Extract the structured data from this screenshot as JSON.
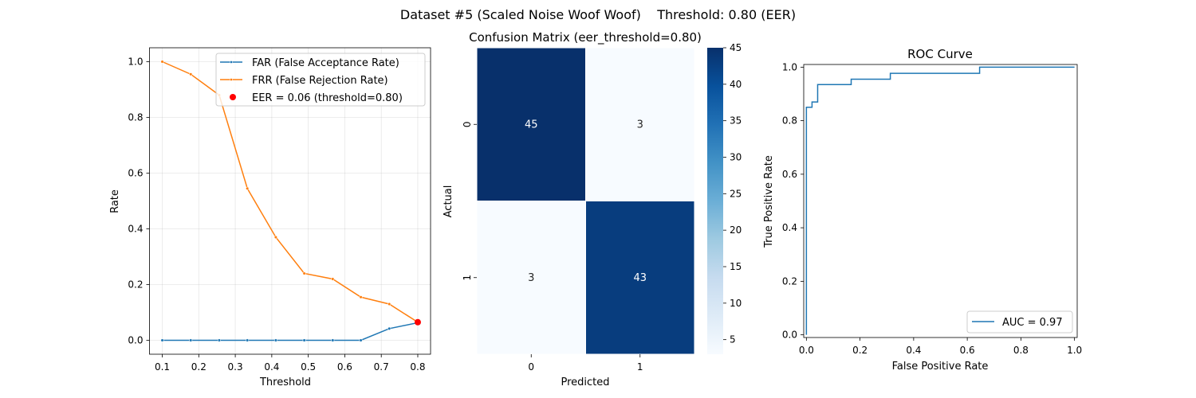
{
  "suptitle": "Dataset #5 (Scaled Noise Woof Woof)    Threshold: 0.80 (EER)",
  "colors": {
    "far": "#1f77b4",
    "frr": "#ff7f0e",
    "eer": "#ff0000",
    "roc": "#1f77b4"
  },
  "chart_data": [
    {
      "type": "line",
      "xlabel": "Threshold",
      "ylabel": "Rate",
      "xlim": [
        0.065,
        0.835
      ],
      "ylim": [
        -0.05,
        1.05
      ],
      "xticks": [
        0.1,
        0.2,
        0.3,
        0.4,
        0.5,
        0.6,
        0.7,
        0.8
      ],
      "yticks": [
        0.0,
        0.2,
        0.4,
        0.6,
        0.8,
        1.0
      ],
      "grid": true,
      "legend_position": "top-right",
      "x": [
        0.1,
        0.178,
        0.256,
        0.333,
        0.411,
        0.489,
        0.567,
        0.644,
        0.722,
        0.8
      ],
      "series": [
        {
          "name": "FAR (False Acceptance Rate)",
          "values": [
            0,
            0,
            0,
            0,
            0,
            0,
            0,
            0,
            0.042,
            0.063
          ]
        },
        {
          "name": "FRR (False Rejection Rate)",
          "values": [
            1.0,
            0.955,
            0.88,
            0.545,
            0.37,
            0.24,
            0.22,
            0.155,
            0.13,
            0.065
          ]
        }
      ],
      "points": [
        {
          "name": "EER = 0.06 (threshold=0.80)",
          "x": 0.8,
          "y": 0.065
        }
      ]
    },
    {
      "type": "heatmap",
      "title": "Confusion Matrix (eer_threshold=0.80)",
      "xlabel": "Predicted",
      "ylabel": "Actual",
      "x_categories": [
        "0",
        "1"
      ],
      "y_categories": [
        "0",
        "1"
      ],
      "values": [
        [
          45,
          3
        ],
        [
          3,
          43
        ]
      ],
      "colorbar": {
        "min": 3,
        "max": 45,
        "ticks": [
          5,
          10,
          15,
          20,
          25,
          30,
          35,
          40,
          45
        ]
      }
    },
    {
      "type": "line",
      "title": "ROC Curve",
      "xlabel": "False Positive Rate",
      "ylabel": "True Positive Rate",
      "xlim": [
        -0.01,
        1.01
      ],
      "ylim": [
        -0.01,
        1.01
      ],
      "xticks": [
        0.0,
        0.2,
        0.4,
        0.6,
        0.8,
        1.0
      ],
      "yticks": [
        0.0,
        0.2,
        0.4,
        0.6,
        0.8,
        1.0
      ],
      "legend_position": "lower-right",
      "series": [
        {
          "name": "AUC = 0.97",
          "x": [
            0,
            0,
            0,
            0.021,
            0.021,
            0.042,
            0.042,
            0.167,
            0.167,
            0.313,
            0.313,
            0.646,
            0.646,
            1.0
          ],
          "y": [
            0,
            0.023,
            0.85,
            0.85,
            0.87,
            0.87,
            0.935,
            0.935,
            0.955,
            0.955,
            0.977,
            0.977,
            1.0,
            1.0
          ]
        }
      ]
    }
  ]
}
